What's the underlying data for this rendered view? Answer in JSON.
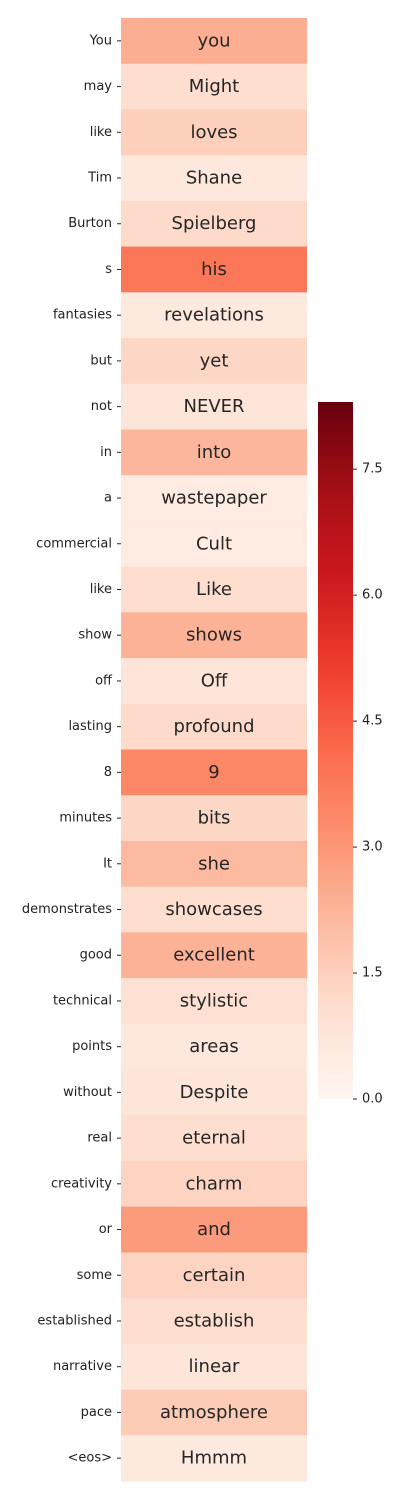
{
  "chart_data": {
    "type": "heatmap",
    "title": "",
    "xlabel": "",
    "ylabel": "",
    "rows": [
      "You",
      "may",
      "like",
      "Tim",
      "Burton",
      "s",
      "fantasies",
      "but",
      "not",
      "in",
      "a",
      "commercial",
      "like",
      "show",
      "off",
      "lasting",
      "8",
      "minutes",
      "It",
      "demonstrates",
      "good",
      "technical",
      "points",
      "without",
      "real",
      "creativity",
      "or",
      "some",
      "established",
      "narrative",
      "pace",
      "<eos>"
    ],
    "cell_text": [
      "you",
      "Might",
      "loves",
      "Shane",
      "Spielberg",
      "his",
      "revelations",
      "yet",
      "NEVER",
      "into",
      "wastepaper",
      "Cult",
      "Like",
      "shows",
      "Off",
      "profound",
      "9",
      "bits",
      "she",
      "showcases",
      "excellent",
      "stylistic",
      "areas",
      "Despite",
      "eternal",
      "charm",
      "and",
      "certain",
      "establish",
      "linear",
      "atmosphere",
      "Hmmm"
    ],
    "values": [
      2.4,
      1.1,
      1.5,
      0.7,
      1.2,
      3.8,
      0.6,
      1.3,
      0.8,
      2.2,
      0.5,
      0.5,
      1.1,
      2.3,
      0.8,
      1.2,
      3.4,
      1.3,
      2.1,
      1.1,
      2.3,
      1.0,
      0.7,
      0.8,
      1.1,
      1.4,
      2.9,
      1.4,
      1.1,
      0.8,
      1.6,
      0.6
    ],
    "colorbar": {
      "min": 0.0,
      "max": 8.3,
      "ticks": [
        "0.0",
        "1.5",
        "3.0",
        "4.5",
        "6.0",
        "7.5"
      ],
      "colormap": "Reds"
    }
  }
}
